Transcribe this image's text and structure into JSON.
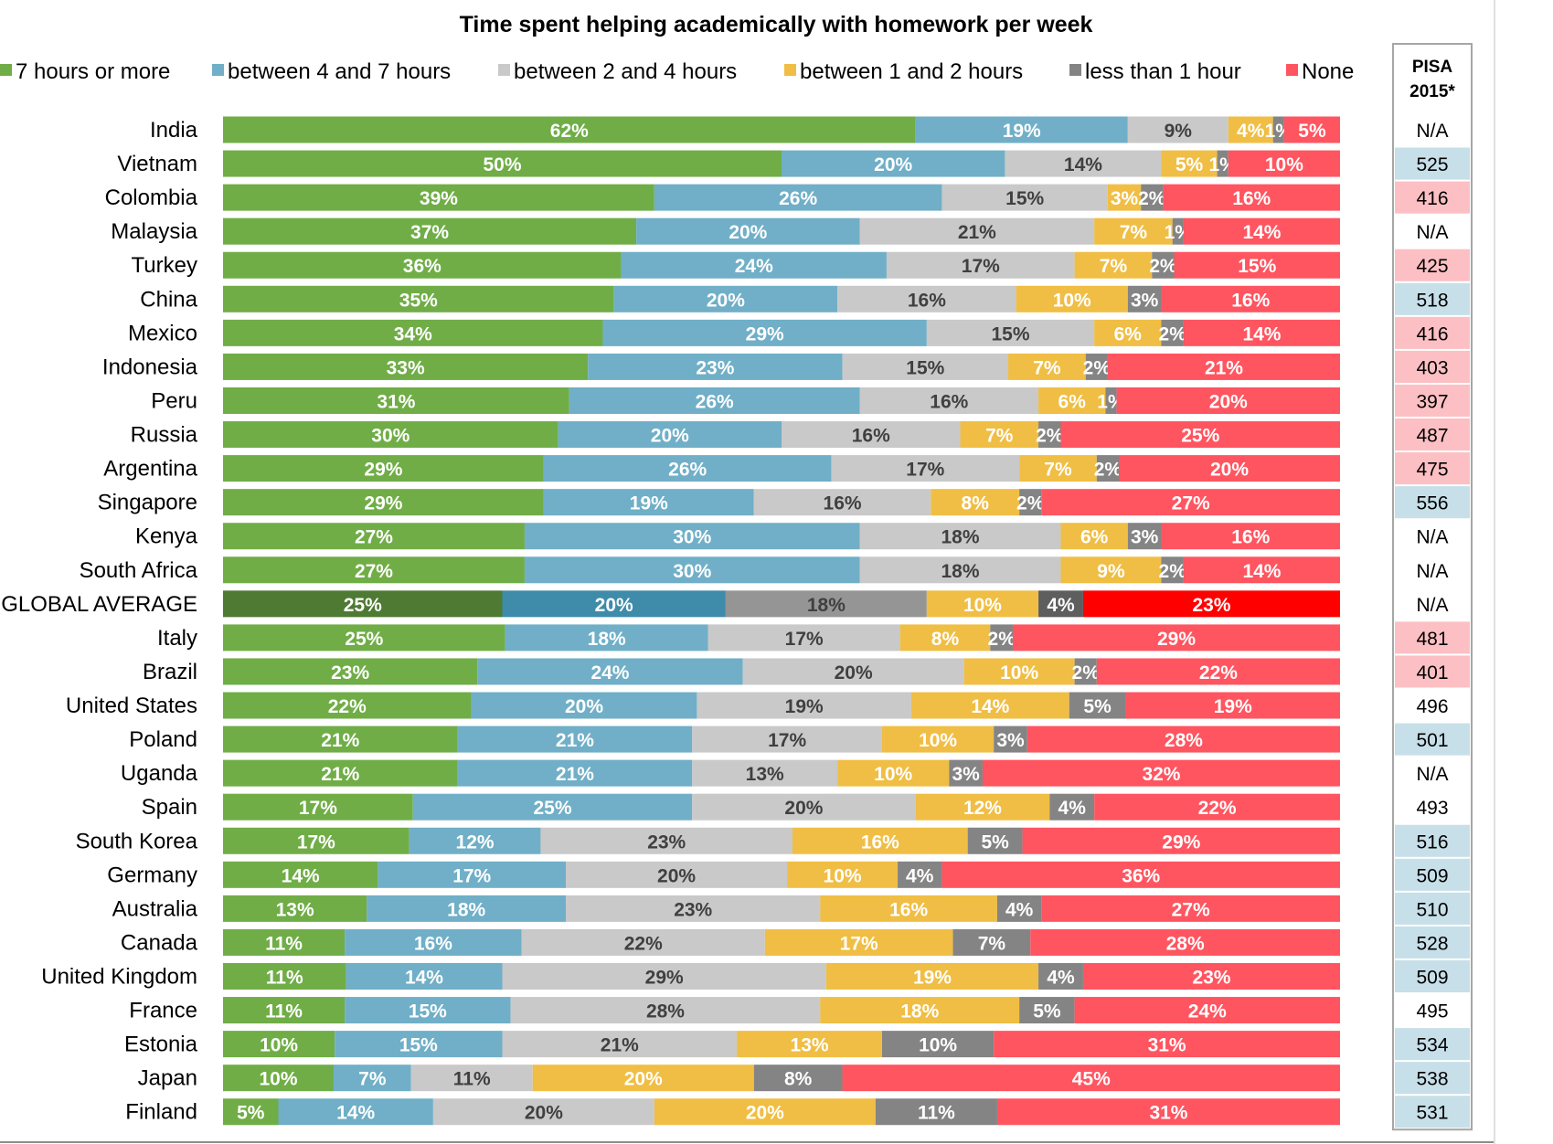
{
  "chart_data": {
    "type": "bar",
    "orientation": "horizontal",
    "stacked": true,
    "title": "Time spent helping academically with homework per week",
    "legend_position": "top",
    "xlim": [
      0,
      100
    ],
    "categories": [
      "India",
      "Vietnam",
      "Colombia",
      "Malaysia",
      "Turkey",
      "China",
      "Mexico",
      "Indonesia",
      "Peru",
      "Russia",
      "Argentina",
      "Singapore",
      "Kenya",
      "South Africa",
      "GLOBAL AVERAGE",
      "Italy",
      "Brazil",
      "United States",
      "Poland",
      "Uganda",
      "Spain",
      "South Korea",
      "Germany",
      "Australia",
      "Canada",
      "United Kingdom",
      "France",
      "Estonia",
      "Japan",
      "Finland"
    ],
    "highlight_category": "GLOBAL AVERAGE",
    "series": [
      {
        "name": "7 hours or more",
        "color": "#70AD47",
        "highlight_color": "#4E7A33",
        "label_color": "#ffffff",
        "values": [
          62,
          50,
          39,
          37,
          36,
          35,
          34,
          33,
          31,
          30,
          29,
          29,
          27,
          27,
          25,
          25,
          23,
          22,
          21,
          21,
          17,
          17,
          14,
          13,
          11,
          11,
          11,
          10,
          10,
          5
        ]
      },
      {
        "name": "between 4 and 7 hours",
        "color": "#70AFC7",
        "highlight_color": "#3E8BAA",
        "label_color": "#ffffff",
        "values": [
          19,
          20,
          26,
          20,
          24,
          20,
          29,
          23,
          26,
          20,
          26,
          19,
          30,
          30,
          20,
          18,
          24,
          20,
          21,
          21,
          25,
          12,
          17,
          18,
          16,
          14,
          15,
          15,
          7,
          14
        ]
      },
      {
        "name": "between 2 and 4 hours",
        "color": "#C9C9C9",
        "highlight_color": "#959595",
        "label_color": "#404040",
        "values": [
          9,
          14,
          15,
          21,
          17,
          16,
          15,
          15,
          16,
          16,
          17,
          16,
          18,
          18,
          18,
          17,
          20,
          19,
          17,
          13,
          20,
          23,
          20,
          23,
          22,
          29,
          28,
          21,
          11,
          20
        ]
      },
      {
        "name": "between 1 and 2 hours",
        "color": "#F0BE44",
        "highlight_color": "#F0BE44",
        "label_color": "#ffffff",
        "values": [
          4,
          5,
          3,
          7,
          7,
          10,
          6,
          7,
          6,
          7,
          7,
          8,
          6,
          9,
          10,
          8,
          10,
          14,
          10,
          10,
          12,
          16,
          10,
          16,
          17,
          19,
          18,
          13,
          20,
          20
        ]
      },
      {
        "name": "less than 1 hour",
        "color": "#848484",
        "highlight_color": "#5E5E5E",
        "label_color": "#ffffff",
        "values": [
          1,
          1,
          2,
          1,
          2,
          3,
          2,
          2,
          1,
          2,
          2,
          2,
          3,
          2,
          4,
          2,
          2,
          5,
          3,
          3,
          4,
          5,
          4,
          4,
          7,
          4,
          5,
          10,
          8,
          11
        ]
      },
      {
        "name": "None",
        "color": "#FF5560",
        "highlight_color": "#FF0000",
        "label_color": "#ffffff",
        "values": [
          5,
          10,
          16,
          14,
          15,
          16,
          14,
          21,
          20,
          25,
          20,
          27,
          16,
          14,
          23,
          29,
          22,
          19,
          28,
          32,
          22,
          29,
          36,
          27,
          28,
          23,
          24,
          31,
          45,
          31
        ]
      }
    ],
    "pisa_table": {
      "header_line1": "PISA",
      "header_line2": "2015*",
      "values": [
        "N/A",
        "525",
        "416",
        "N/A",
        "425",
        "518",
        "416",
        "403",
        "397",
        "487",
        "475",
        "556",
        "N/A",
        "N/A",
        "N/A",
        "481",
        "401",
        "496",
        "501",
        "N/A",
        "493",
        "516",
        "509",
        "510",
        "528",
        "509",
        "495",
        "534",
        "538",
        "531"
      ],
      "shading": [
        "none",
        "blue",
        "pink",
        "none",
        "pink",
        "blue",
        "pink",
        "pink",
        "pink",
        "pink",
        "pink",
        "blue",
        "none",
        "none",
        "none",
        "pink",
        "pink",
        "none",
        "blue",
        "none",
        "none",
        "blue",
        "blue",
        "blue",
        "blue",
        "blue",
        "none",
        "blue",
        "blue",
        "blue"
      ],
      "shade_colors": {
        "blue": "#C7DFE9",
        "pink": "#FCC0C4",
        "none": "#ffffff"
      }
    }
  }
}
